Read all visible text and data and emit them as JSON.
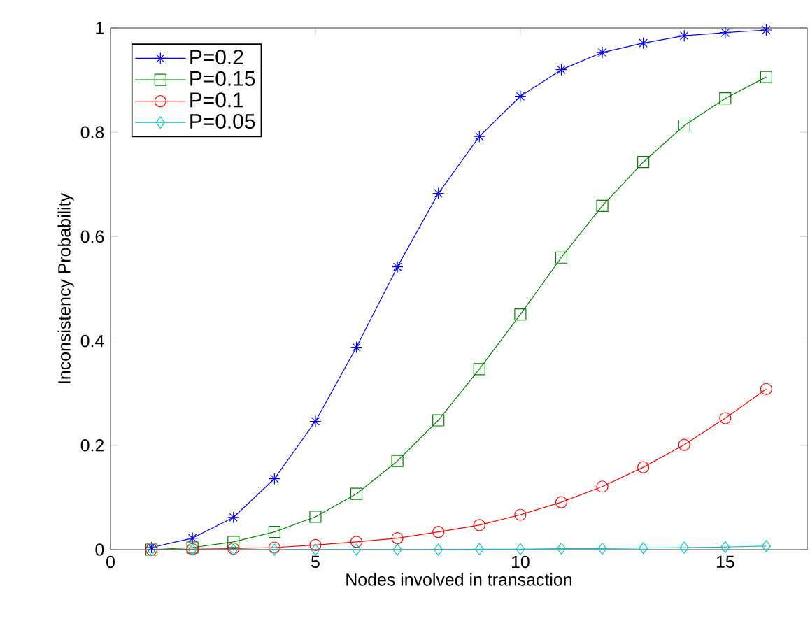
{
  "chart_data": {
    "type": "line",
    "xlabel": "Nodes involved in transaction",
    "ylabel": "Inconsistency Probability",
    "x": [
      1,
      2,
      3,
      4,
      5,
      6,
      7,
      8,
      9,
      10,
      11,
      12,
      13,
      14,
      15,
      16
    ],
    "xlim": [
      0,
      17
    ],
    "ylim": [
      0,
      1
    ],
    "xticks": [
      0,
      5,
      10,
      15
    ],
    "yticks": [
      0,
      0.2,
      0.4,
      0.6,
      0.8,
      1
    ],
    "grid": false,
    "legend": "top left",
    "line_style": "solid",
    "series": [
      {
        "name": "P=0.2",
        "color": "#0000ff",
        "marker": "cross",
        "values": [
          0.004,
          0.022,
          0.062,
          0.136,
          0.246,
          0.388,
          0.542,
          0.683,
          0.792,
          0.869,
          0.92,
          0.953,
          0.971,
          0.985,
          0.991,
          0.996
        ]
      },
      {
        "name": "P=0.15",
        "color": "#008000",
        "marker": "square",
        "values": [
          0.0,
          0.004,
          0.015,
          0.034,
          0.063,
          0.107,
          0.17,
          0.248,
          0.346,
          0.451,
          0.56,
          0.659,
          0.743,
          0.813,
          0.865,
          0.906
        ]
      },
      {
        "name": "P=0.1",
        "color": "#ff0000",
        "marker": "circle",
        "values": [
          0.0,
          0.001,
          0.002,
          0.004,
          0.009,
          0.015,
          0.022,
          0.034,
          0.047,
          0.067,
          0.091,
          0.121,
          0.158,
          0.201,
          0.252,
          0.308
        ]
      },
      {
        "name": "P=0.05",
        "color": "#00bfbf",
        "marker": "diamond",
        "values": [
          0,
          0,
          0,
          0,
          0,
          0,
          0,
          0,
          0.001,
          0.001,
          0.002,
          0.002,
          0.003,
          0.004,
          0.005,
          0.007
        ]
      }
    ]
  }
}
